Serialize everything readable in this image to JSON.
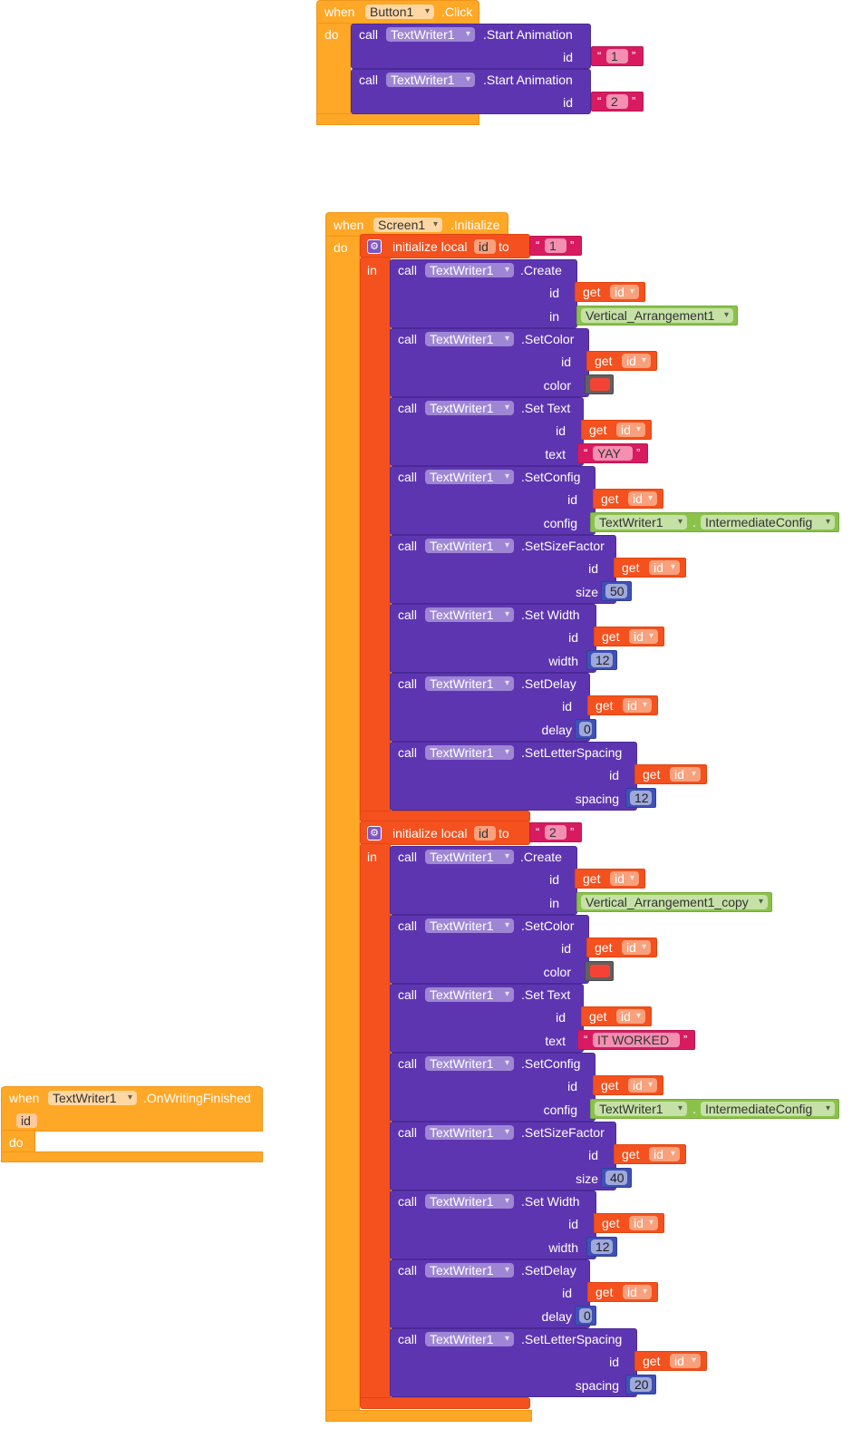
{
  "common": {
    "when": "when",
    "do": "do",
    "call": "call",
    "in": "in",
    "get": "get",
    "id": "id",
    "to": "to",
    "initialize_local": "initialize local",
    "color": "color",
    "text": "text",
    "config": "config",
    "size": "size",
    "width": "width",
    "delay": "delay",
    "spacing": "spacing",
    "dot": ".",
    "open_quote": "“",
    "close_quote": "”"
  },
  "components": {
    "button": "Button1",
    "screen": "Screen1",
    "textwriter": "TextWriter1"
  },
  "events": {
    "click": ".Click",
    "initialize": ".Initialize",
    "writing_finished": ".OnWritingFinished"
  },
  "methods": {
    "start_animation": ".Start Animation",
    "create": ".Create",
    "set_color": ".SetColor",
    "set_text": ".Set Text",
    "set_config": ".SetConfig",
    "set_size_factor": ".SetSizeFactor",
    "set_width": ".Set Width",
    "set_delay": ".SetDelay",
    "set_letter_spacing": ".SetLetterSpacing"
  },
  "click_block": {
    "start_ids": [
      "1",
      "2"
    ]
  },
  "init_block": {
    "groups": [
      {
        "local_value": "1",
        "arrangement": "Vertical_Arrangement1",
        "text": "YAY",
        "config_component": "TextWriter1",
        "config": "IntermediateConfig",
        "size": "50",
        "width": "12",
        "delay": "0",
        "spacing": "12"
      },
      {
        "local_value": "2",
        "arrangement": "Vertical_Arrangement1_copy",
        "text": "IT WORKED",
        "config_component": "TextWriter1",
        "config": "IntermediateConfig",
        "size": "40",
        "width": "12",
        "delay": "0",
        "spacing": "20"
      }
    ]
  },
  "colors": {
    "event": "#ffa726",
    "procedure": "#5e35b1",
    "variable": "#f4511e",
    "text": "#d81b60",
    "math": "#3f51b5",
    "component": "#8bc34a",
    "color_value": "#f44336"
  }
}
